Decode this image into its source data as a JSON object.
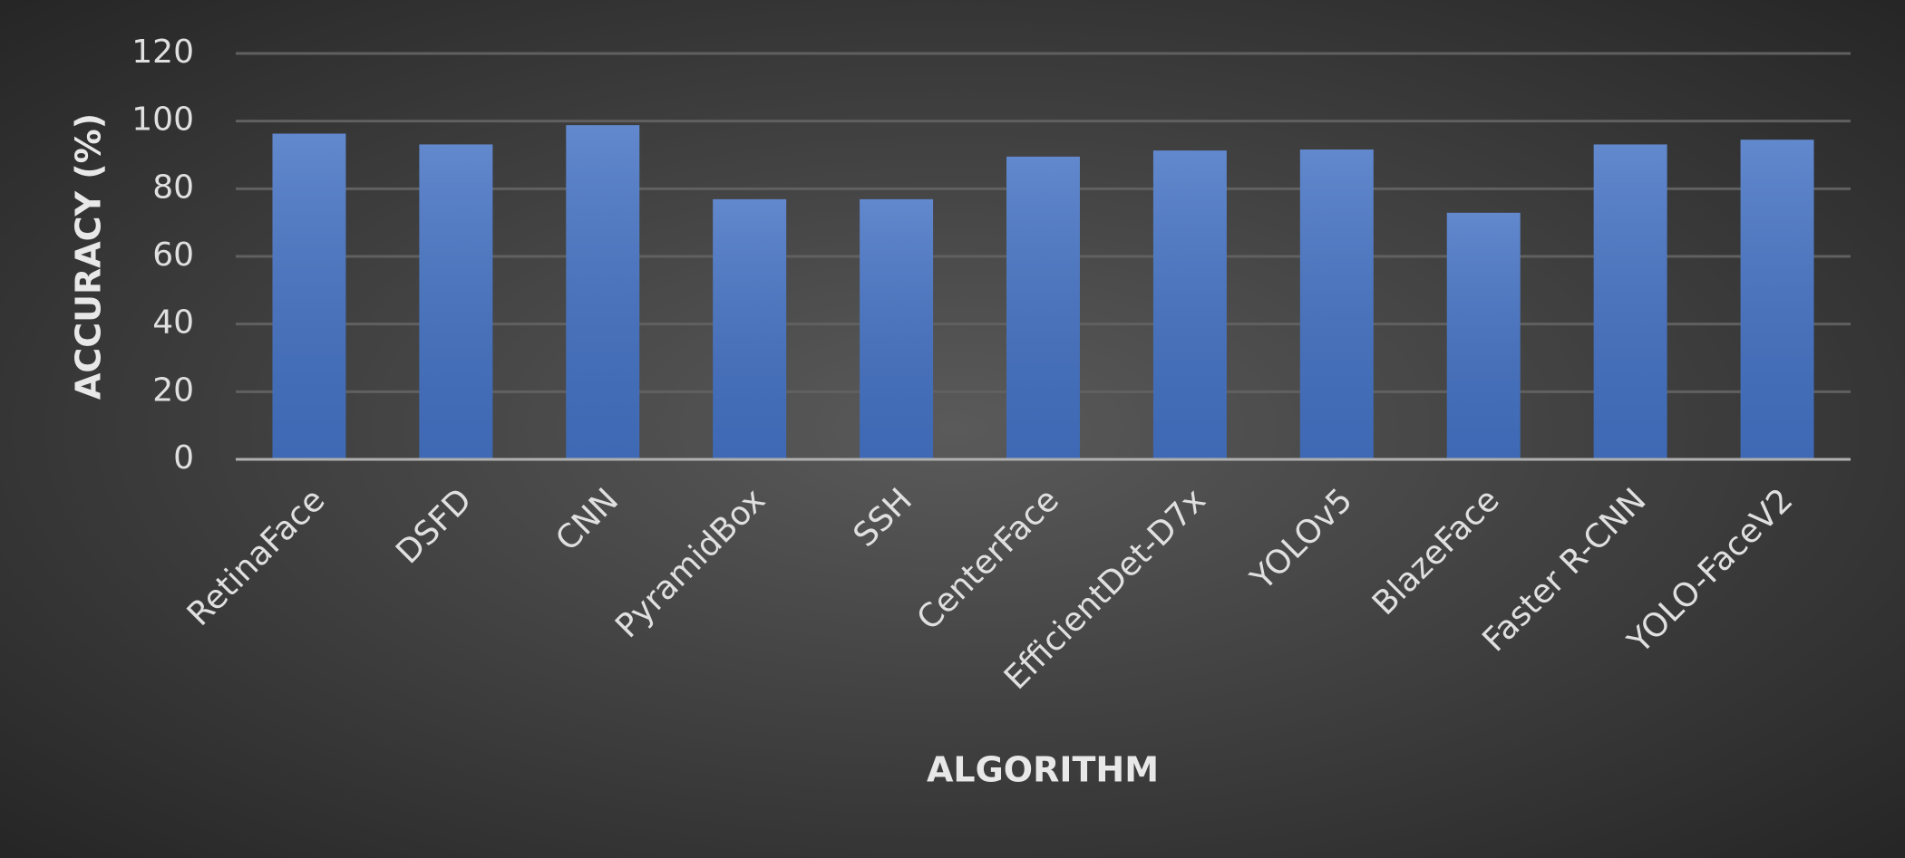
{
  "chart_data": {
    "type": "bar",
    "categories": [
      "RetinaFace",
      "DSFD",
      "CNN",
      "PyramidBox",
      "SSH",
      "CenterFace",
      "EfficientDet-D7x",
      "YOLOv5",
      "BlazeFace",
      "Faster R-CNN",
      "YOLO-FaceV2"
    ],
    "values": [
      96.3,
      93.1,
      98.8,
      76.9,
      76.9,
      89.5,
      91.3,
      91.6,
      72.9,
      93.1,
      94.5
    ],
    "color": "#4472c4",
    "x_label": "ALGORITHM",
    "y_label": "ACCURACY (%)",
    "ylim": [
      0,
      120
    ],
    "yticks": [
      0,
      20,
      40,
      60,
      80,
      100,
      120
    ],
    "grid": true
  }
}
